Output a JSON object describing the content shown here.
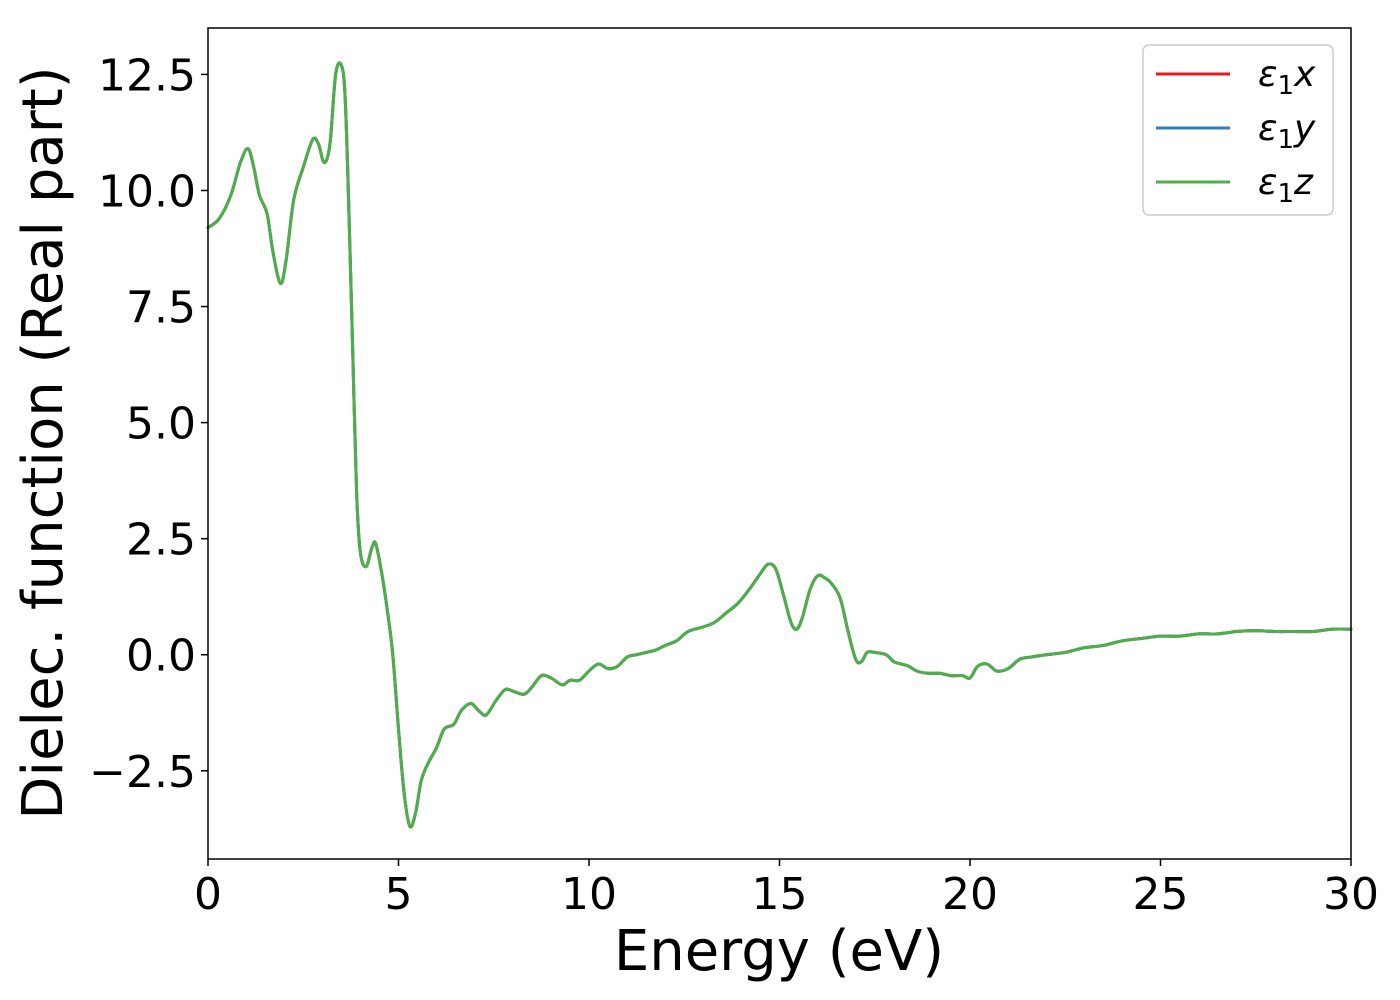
{
  "chart_data": {
    "type": "line",
    "title": "",
    "xlabel": "Energy (eV)",
    "ylabel": "Dielec. function (Real part)",
    "xlim": [
      0,
      30
    ],
    "ylim": [
      -4.4,
      13.5
    ],
    "xticks": [
      0,
      5,
      10,
      15,
      20,
      25,
      30
    ],
    "xtick_labels": [
      "0",
      "5",
      "10",
      "15",
      "20",
      "25",
      "30"
    ],
    "yticks": [
      -2.5,
      0.0,
      2.5,
      5.0,
      7.5,
      10.0,
      12.5
    ],
    "ytick_labels": [
      "−2.5",
      "0.0",
      "2.5",
      "5.0",
      "7.5",
      "10.0",
      "12.5"
    ],
    "grid": false,
    "legend_position": "top-right",
    "series": [
      {
        "name": "ε₁x",
        "name_base": "ε",
        "name_sub": "1",
        "name_suffix": "x",
        "color": "#e41a1c",
        "x": [
          0,
          0.3,
          0.6,
          0.85,
          1.05,
          1.2,
          1.35,
          1.55,
          1.7,
          1.9,
          2.05,
          2.25,
          2.5,
          2.75,
          2.9,
          3.05,
          3.2,
          3.35,
          3.5,
          3.6,
          3.7,
          3.8,
          3.9,
          4.0,
          4.15,
          4.3,
          4.4,
          4.55,
          4.7,
          4.85,
          5.0,
          5.15,
          5.3,
          5.45,
          5.6,
          5.8,
          6.0,
          6.2,
          6.45,
          6.65,
          6.9,
          7.1,
          7.3,
          7.55,
          7.8,
          8.05,
          8.3,
          8.5,
          8.75,
          9.0,
          9.3,
          9.5,
          9.75,
          10.0,
          10.25,
          10.5,
          10.75,
          11.0,
          11.25,
          11.5,
          11.75,
          12.0,
          12.3,
          12.6,
          13.0,
          13.3,
          13.6,
          13.9,
          14.2,
          14.5,
          14.7,
          14.9,
          15.1,
          15.3,
          15.45,
          15.6,
          15.8,
          16.0,
          16.2,
          16.4,
          16.6,
          16.8,
          17.0,
          17.15,
          17.3,
          17.5,
          17.8,
          18.0,
          18.2,
          18.4,
          18.6,
          18.9,
          19.2,
          19.5,
          19.8,
          20.0,
          20.2,
          20.45,
          20.7,
          21.0,
          21.3,
          21.6,
          22.0,
          22.5,
          23.0,
          23.5,
          24.0,
          24.5,
          25.0,
          25.5,
          26.0,
          26.5,
          27.0,
          27.5,
          28.0,
          28.5,
          29.0,
          29.5,
          30.0
        ],
        "y": [
          9.2,
          9.4,
          9.9,
          10.6,
          10.9,
          10.5,
          9.9,
          9.5,
          8.7,
          8.0,
          8.5,
          9.8,
          10.5,
          11.1,
          11.0,
          10.6,
          11.0,
          12.5,
          12.7,
          12.0,
          9.5,
          6.5,
          3.5,
          2.2,
          1.9,
          2.3,
          2.4,
          1.8,
          1.0,
          0.0,
          -1.6,
          -3.0,
          -3.7,
          -3.4,
          -2.7,
          -2.3,
          -2.0,
          -1.6,
          -1.5,
          -1.2,
          -1.05,
          -1.2,
          -1.3,
          -1.0,
          -0.75,
          -0.8,
          -0.85,
          -0.7,
          -0.45,
          -0.5,
          -0.65,
          -0.55,
          -0.55,
          -0.35,
          -0.2,
          -0.3,
          -0.25,
          -0.05,
          0.0,
          0.05,
          0.1,
          0.2,
          0.3,
          0.5,
          0.6,
          0.7,
          0.9,
          1.1,
          1.4,
          1.75,
          1.95,
          1.85,
          1.3,
          0.7,
          0.55,
          0.8,
          1.4,
          1.7,
          1.65,
          1.5,
          1.2,
          0.5,
          -0.1,
          -0.15,
          0.05,
          0.05,
          0.0,
          -0.15,
          -0.2,
          -0.25,
          -0.35,
          -0.4,
          -0.4,
          -0.45,
          -0.45,
          -0.5,
          -0.25,
          -0.2,
          -0.35,
          -0.3,
          -0.1,
          -0.05,
          0.0,
          0.05,
          0.15,
          0.2,
          0.3,
          0.35,
          0.4,
          0.4,
          0.45,
          0.45,
          0.5,
          0.52,
          0.5,
          0.5,
          0.5,
          0.55,
          0.55
        ]
      },
      {
        "name": "ε₁y",
        "name_base": "ε",
        "name_sub": "1",
        "name_suffix": "y",
        "color": "#377eb8",
        "x": [
          0,
          0.3,
          0.6,
          0.85,
          1.05,
          1.2,
          1.35,
          1.55,
          1.7,
          1.9,
          2.05,
          2.25,
          2.5,
          2.75,
          2.9,
          3.05,
          3.2,
          3.35,
          3.5,
          3.6,
          3.7,
          3.8,
          3.9,
          4.0,
          4.15,
          4.3,
          4.4,
          4.55,
          4.7,
          4.85,
          5.0,
          5.15,
          5.3,
          5.45,
          5.6,
          5.8,
          6.0,
          6.2,
          6.45,
          6.65,
          6.9,
          7.1,
          7.3,
          7.55,
          7.8,
          8.05,
          8.3,
          8.5,
          8.75,
          9.0,
          9.3,
          9.5,
          9.75,
          10.0,
          10.25,
          10.5,
          10.75,
          11.0,
          11.25,
          11.5,
          11.75,
          12.0,
          12.3,
          12.6,
          13.0,
          13.3,
          13.6,
          13.9,
          14.2,
          14.5,
          14.7,
          14.9,
          15.1,
          15.3,
          15.45,
          15.6,
          15.8,
          16.0,
          16.2,
          16.4,
          16.6,
          16.8,
          17.0,
          17.15,
          17.3,
          17.5,
          17.8,
          18.0,
          18.2,
          18.4,
          18.6,
          18.9,
          19.2,
          19.5,
          19.8,
          20.0,
          20.2,
          20.45,
          20.7,
          21.0,
          21.3,
          21.6,
          22.0,
          22.5,
          23.0,
          23.5,
          24.0,
          24.5,
          25.0,
          25.5,
          26.0,
          26.5,
          27.0,
          27.5,
          28.0,
          28.5,
          29.0,
          29.5,
          30.0
        ],
        "y": [
          9.2,
          9.4,
          9.9,
          10.6,
          10.9,
          10.5,
          9.9,
          9.5,
          8.7,
          8.0,
          8.5,
          9.8,
          10.5,
          11.1,
          11.0,
          10.6,
          11.0,
          12.5,
          12.7,
          12.0,
          9.5,
          6.5,
          3.5,
          2.2,
          1.9,
          2.3,
          2.4,
          1.8,
          1.0,
          0.0,
          -1.6,
          -3.0,
          -3.7,
          -3.4,
          -2.7,
          -2.3,
          -2.0,
          -1.6,
          -1.5,
          -1.2,
          -1.05,
          -1.2,
          -1.3,
          -1.0,
          -0.75,
          -0.8,
          -0.85,
          -0.7,
          -0.45,
          -0.5,
          -0.65,
          -0.55,
          -0.55,
          -0.35,
          -0.2,
          -0.3,
          -0.25,
          -0.05,
          0.0,
          0.05,
          0.1,
          0.2,
          0.3,
          0.5,
          0.6,
          0.7,
          0.9,
          1.1,
          1.4,
          1.75,
          1.95,
          1.85,
          1.3,
          0.7,
          0.55,
          0.8,
          1.4,
          1.7,
          1.65,
          1.5,
          1.2,
          0.5,
          -0.1,
          -0.15,
          0.05,
          0.05,
          0.0,
          -0.15,
          -0.2,
          -0.25,
          -0.35,
          -0.4,
          -0.4,
          -0.45,
          -0.45,
          -0.5,
          -0.25,
          -0.2,
          -0.35,
          -0.3,
          -0.1,
          -0.05,
          0.0,
          0.05,
          0.15,
          0.2,
          0.3,
          0.35,
          0.4,
          0.4,
          0.45,
          0.45,
          0.5,
          0.52,
          0.5,
          0.5,
          0.5,
          0.55,
          0.55
        ]
      },
      {
        "name": "ε₁z",
        "name_base": "ε",
        "name_sub": "1",
        "name_suffix": "z",
        "color": "#4daf4a",
        "x": [
          0,
          0.3,
          0.6,
          0.85,
          1.05,
          1.2,
          1.35,
          1.55,
          1.7,
          1.9,
          2.05,
          2.25,
          2.5,
          2.75,
          2.9,
          3.05,
          3.2,
          3.35,
          3.5,
          3.6,
          3.7,
          3.8,
          3.9,
          4.0,
          4.15,
          4.3,
          4.4,
          4.55,
          4.7,
          4.85,
          5.0,
          5.15,
          5.3,
          5.45,
          5.6,
          5.8,
          6.0,
          6.2,
          6.45,
          6.65,
          6.9,
          7.1,
          7.3,
          7.55,
          7.8,
          8.05,
          8.3,
          8.5,
          8.75,
          9.0,
          9.3,
          9.5,
          9.75,
          10.0,
          10.25,
          10.5,
          10.75,
          11.0,
          11.25,
          11.5,
          11.75,
          12.0,
          12.3,
          12.6,
          13.0,
          13.3,
          13.6,
          13.9,
          14.2,
          14.5,
          14.7,
          14.9,
          15.1,
          15.3,
          15.45,
          15.6,
          15.8,
          16.0,
          16.2,
          16.4,
          16.6,
          16.8,
          17.0,
          17.15,
          17.3,
          17.5,
          17.8,
          18.0,
          18.2,
          18.4,
          18.6,
          18.9,
          19.2,
          19.5,
          19.8,
          20.0,
          20.2,
          20.45,
          20.7,
          21.0,
          21.3,
          21.6,
          22.0,
          22.5,
          23.0,
          23.5,
          24.0,
          24.5,
          25.0,
          25.5,
          26.0,
          26.5,
          27.0,
          27.5,
          28.0,
          28.5,
          29.0,
          29.5,
          30.0
        ],
        "y": [
          9.2,
          9.4,
          9.9,
          10.6,
          10.9,
          10.5,
          9.9,
          9.5,
          8.7,
          8.0,
          8.5,
          9.8,
          10.5,
          11.1,
          11.0,
          10.6,
          11.0,
          12.5,
          12.7,
          12.0,
          9.5,
          6.5,
          3.5,
          2.2,
          1.9,
          2.3,
          2.4,
          1.8,
          1.0,
          0.0,
          -1.6,
          -3.0,
          -3.7,
          -3.4,
          -2.7,
          -2.3,
          -2.0,
          -1.6,
          -1.5,
          -1.2,
          -1.05,
          -1.2,
          -1.3,
          -1.0,
          -0.75,
          -0.8,
          -0.85,
          -0.7,
          -0.45,
          -0.5,
          -0.65,
          -0.55,
          -0.55,
          -0.35,
          -0.2,
          -0.3,
          -0.25,
          -0.05,
          0.0,
          0.05,
          0.1,
          0.2,
          0.3,
          0.5,
          0.6,
          0.7,
          0.9,
          1.1,
          1.4,
          1.75,
          1.95,
          1.85,
          1.3,
          0.7,
          0.55,
          0.8,
          1.4,
          1.7,
          1.65,
          1.5,
          1.2,
          0.5,
          -0.1,
          -0.15,
          0.05,
          0.05,
          0.0,
          -0.15,
          -0.2,
          -0.25,
          -0.35,
          -0.4,
          -0.4,
          -0.45,
          -0.45,
          -0.5,
          -0.25,
          -0.2,
          -0.35,
          -0.3,
          -0.1,
          -0.05,
          0.0,
          0.05,
          0.15,
          0.2,
          0.3,
          0.35,
          0.4,
          0.4,
          0.45,
          0.45,
          0.5,
          0.52,
          0.5,
          0.5,
          0.5,
          0.55,
          0.55
        ]
      }
    ]
  }
}
